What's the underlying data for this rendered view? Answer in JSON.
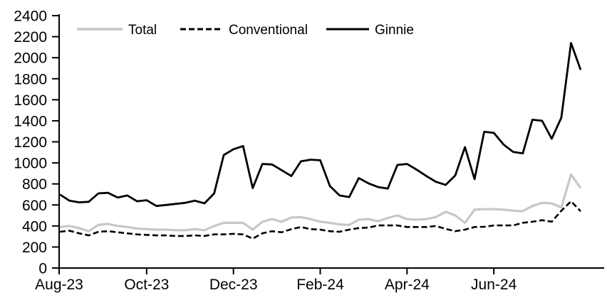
{
  "chart_data": {
    "type": "line",
    "title": "",
    "xlabel": "",
    "ylabel": "",
    "ylim": [
      0,
      2400
    ],
    "y_ticks": [
      0,
      200,
      400,
      600,
      800,
      1000,
      1200,
      1400,
      1600,
      1800,
      2000,
      2200,
      2400
    ],
    "x_tick_labels": [
      "Aug-23",
      "Oct-23",
      "Dec-23",
      "Feb-24",
      "Apr-24",
      "Jun-24"
    ],
    "x_tick_indices": [
      0,
      9,
      18,
      27,
      36,
      45
    ],
    "x_frequency": "weekly",
    "x_range_note": "Aug-23 through mid-Aug-24",
    "grid": false,
    "legend_position": "top",
    "series": [
      {
        "name": "Total",
        "color": "#c7c7c7",
        "style": "solid",
        "values": [
          390,
          400,
          380,
          350,
          410,
          420,
          400,
          390,
          375,
          370,
          365,
          365,
          360,
          360,
          370,
          360,
          400,
          430,
          430,
          430,
          365,
          440,
          465,
          440,
          480,
          485,
          465,
          440,
          430,
          415,
          410,
          460,
          465,
          445,
          475,
          500,
          465,
          460,
          465,
          485,
          535,
          500,
          430,
          555,
          560,
          560,
          555,
          545,
          540,
          590,
          620,
          615,
          575,
          890,
          760
        ]
      },
      {
        "name": "Conventional",
        "color": "#000000",
        "style": "dashed",
        "values": [
          345,
          355,
          330,
          310,
          345,
          350,
          340,
          330,
          320,
          315,
          310,
          310,
          305,
          305,
          310,
          305,
          320,
          320,
          325,
          320,
          280,
          330,
          350,
          340,
          370,
          390,
          370,
          365,
          350,
          345,
          365,
          380,
          385,
          405,
          405,
          405,
          390,
          390,
          390,
          400,
          372,
          350,
          365,
          390,
          392,
          405,
          405,
          405,
          430,
          440,
          455,
          440,
          545,
          635,
          540
        ]
      },
      {
        "name": "Ginnie",
        "color": "#000000",
        "style": "solid",
        "values": [
          700,
          640,
          625,
          630,
          710,
          715,
          670,
          690,
          635,
          645,
          590,
          600,
          610,
          620,
          640,
          615,
          710,
          1075,
          1130,
          1160,
          760,
          990,
          985,
          930,
          875,
          1015,
          1030,
          1025,
          780,
          690,
          675,
          855,
          805,
          770,
          755,
          980,
          990,
          935,
          875,
          820,
          790,
          880,
          1150,
          845,
          1295,
          1285,
          1175,
          1105,
          1090,
          1410,
          1400,
          1230,
          1430,
          2140,
          1885
        ]
      }
    ]
  },
  "colors": {
    "axis": "#000000",
    "background": "#ffffff"
  }
}
